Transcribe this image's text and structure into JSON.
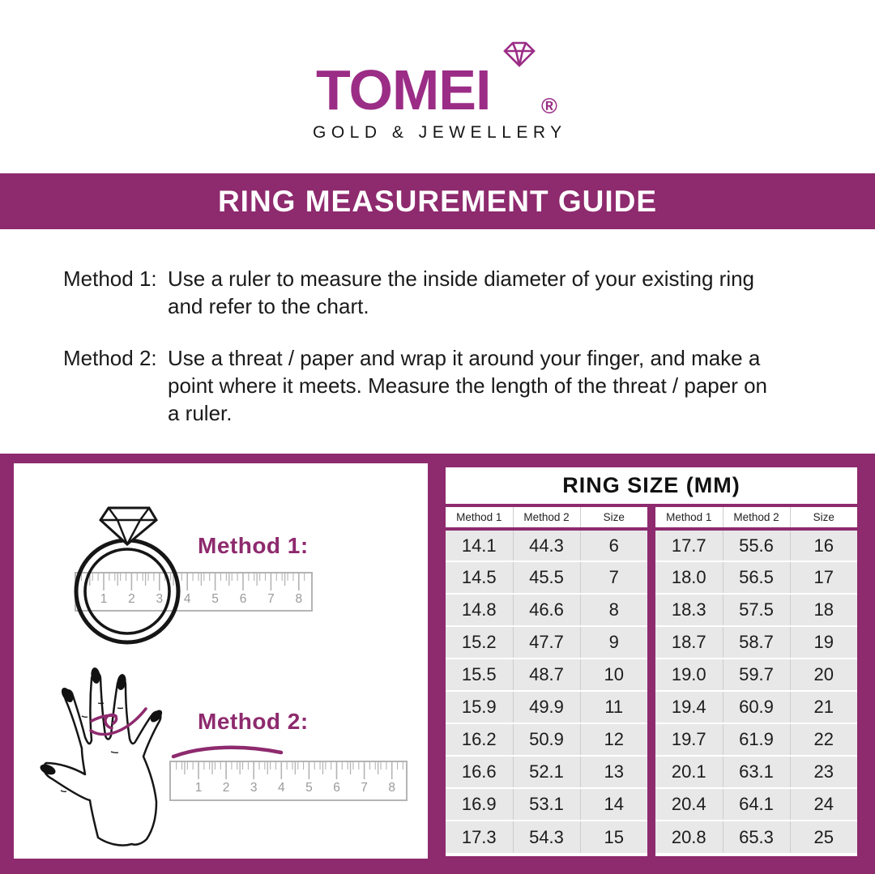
{
  "logo": {
    "brand": "TOMEI",
    "registered": "®",
    "tagline": "GOLD & JEWELLERY"
  },
  "banner": {
    "title": "RING MEASUREMENT GUIDE"
  },
  "methods": [
    {
      "label": "Method 1:",
      "text": "Use a ruler to measure the inside diameter of your existing ring and refer to the chart."
    },
    {
      "label": "Method 2:",
      "text": "Use a threat / paper and wrap it around your finger, and make a point where it meets. Measure the length of the threat / paper on a ruler."
    }
  ],
  "diagram": {
    "method1_caption": "Method 1:",
    "method2_caption": "Method 2:",
    "ruler_numbers": [
      "1",
      "2",
      "3",
      "4",
      "5",
      "6",
      "7",
      "8"
    ]
  },
  "size_table": {
    "title": "RING SIZE (MM)",
    "columns": [
      "Method 1",
      "Method 2",
      "Size"
    ],
    "left_rows": [
      [
        "14.1",
        "44.3",
        "6"
      ],
      [
        "14.5",
        "45.5",
        "7"
      ],
      [
        "14.8",
        "46.6",
        "8"
      ],
      [
        "15.2",
        "47.7",
        "9"
      ],
      [
        "15.5",
        "48.7",
        "10"
      ],
      [
        "15.9",
        "49.9",
        "11"
      ],
      [
        "16.2",
        "50.9",
        "12"
      ],
      [
        "16.6",
        "52.1",
        "13"
      ],
      [
        "16.9",
        "53.1",
        "14"
      ],
      [
        "17.3",
        "54.3",
        "15"
      ]
    ],
    "right_rows": [
      [
        "17.7",
        "55.6",
        "16"
      ],
      [
        "18.0",
        "56.5",
        "17"
      ],
      [
        "18.3",
        "57.5",
        "18"
      ],
      [
        "18.7",
        "58.7",
        "19"
      ],
      [
        "19.0",
        "59.7",
        "20"
      ],
      [
        "19.4",
        "60.9",
        "21"
      ],
      [
        "19.7",
        "61.9",
        "22"
      ],
      [
        "20.1",
        "63.1",
        "23"
      ],
      [
        "20.4",
        "64.1",
        "24"
      ],
      [
        "20.8",
        "65.3",
        "25"
      ]
    ]
  },
  "colors": {
    "brand_magenta": "#9b2d86",
    "ui_purple": "#8e2a6e",
    "table_row_gray": "#e8e8e8",
    "ruler_gray": "#b4b4b4"
  }
}
